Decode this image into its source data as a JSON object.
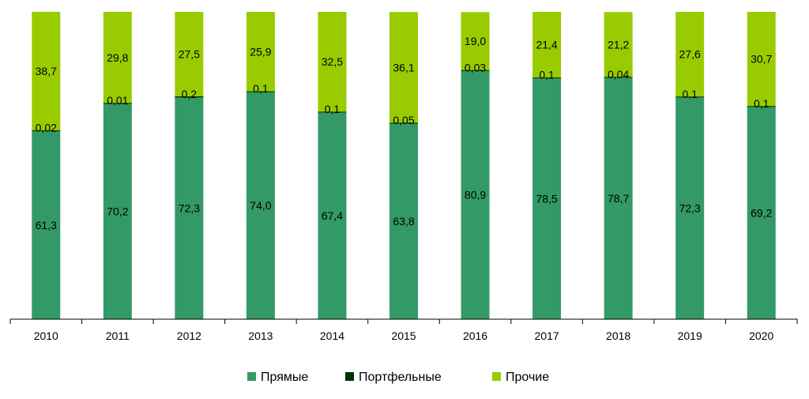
{
  "chart_data": {
    "type": "bar",
    "stacked": true,
    "title": "",
    "xlabel": "",
    "ylabel": "",
    "categories": [
      "2010",
      "2011",
      "2012",
      "2013",
      "2014",
      "2015",
      "2016",
      "2017",
      "2018",
      "2019",
      "2020"
    ],
    "ylim": [
      0,
      100
    ],
    "grid": false,
    "legend_position": "bottom",
    "series": [
      {
        "name": "Прямые",
        "color": "#339966",
        "values": [
          61.3,
          70.2,
          72.3,
          74.0,
          67.4,
          63.8,
          80.9,
          78.5,
          78.7,
          72.3,
          69.2
        ],
        "labels": [
          "61,3",
          "70,2",
          "72,3",
          "74,0",
          "67,4",
          "63,8",
          "80,9",
          "78,5",
          "78,7",
          "72,3",
          "69,2"
        ]
      },
      {
        "name": "Портфельные",
        "color": "#003300",
        "values": [
          0.02,
          0.01,
          0.2,
          0.1,
          0.1,
          0.05,
          0.03,
          0.1,
          0.04,
          0.1,
          0.1
        ],
        "labels": [
          "0,02",
          "0,01",
          "0,2",
          "0,1",
          "0,1",
          "0,05",
          "0,03",
          "0,1",
          "0,04",
          "0,1",
          "0,1"
        ]
      },
      {
        "name": "Прочие",
        "color": "#99CC00",
        "values": [
          38.7,
          29.8,
          27.5,
          25.9,
          32.5,
          36.1,
          19.0,
          21.4,
          21.2,
          27.6,
          30.7
        ],
        "labels": [
          "38,7",
          "29,8",
          "27,5",
          "25,9",
          "32,5",
          "36,1",
          "19,0",
          "21,4",
          "21,2",
          "27,6",
          "30,7"
        ]
      }
    ]
  }
}
